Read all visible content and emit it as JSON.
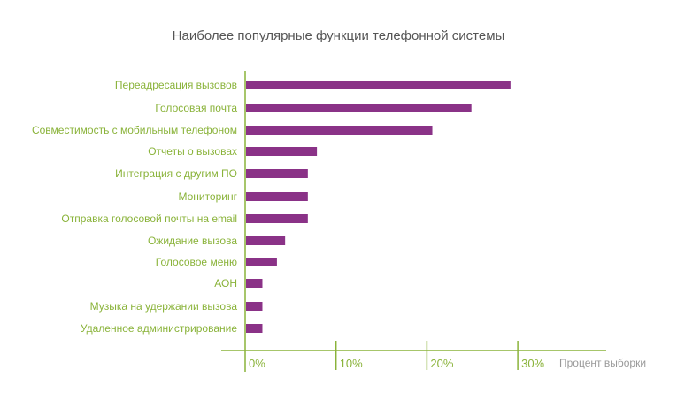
{
  "chart_data": {
    "type": "bar",
    "orientation": "horizontal",
    "title": "Наиболее популярные функции телефонной системы",
    "xlabel": "Процент выборки",
    "ylabel": "",
    "xlim": [
      0,
      30
    ],
    "xticks": [
      "0%",
      "10%",
      "20%",
      "30%"
    ],
    "categories": [
      "Переадресация вызовов",
      "Голосовая почта",
      "Совместимость с мобильным телефоном",
      "Отчеты о вызовах",
      "Интеграция с другим ПО",
      "Мониторинг",
      "Отправка голосовой почты на email",
      "Ожидание вызова",
      "Голосовое меню",
      "АОН",
      "Музыка на удержании вызова",
      "Удаленное администрирование"
    ],
    "values": [
      29.1,
      24.8,
      20.5,
      7.8,
      6.8,
      6.8,
      6.8,
      4.3,
      3.4,
      1.8,
      1.8,
      1.8
    ],
    "colors": {
      "bar": "#8a3287",
      "axis": "#8ab33a"
    }
  }
}
